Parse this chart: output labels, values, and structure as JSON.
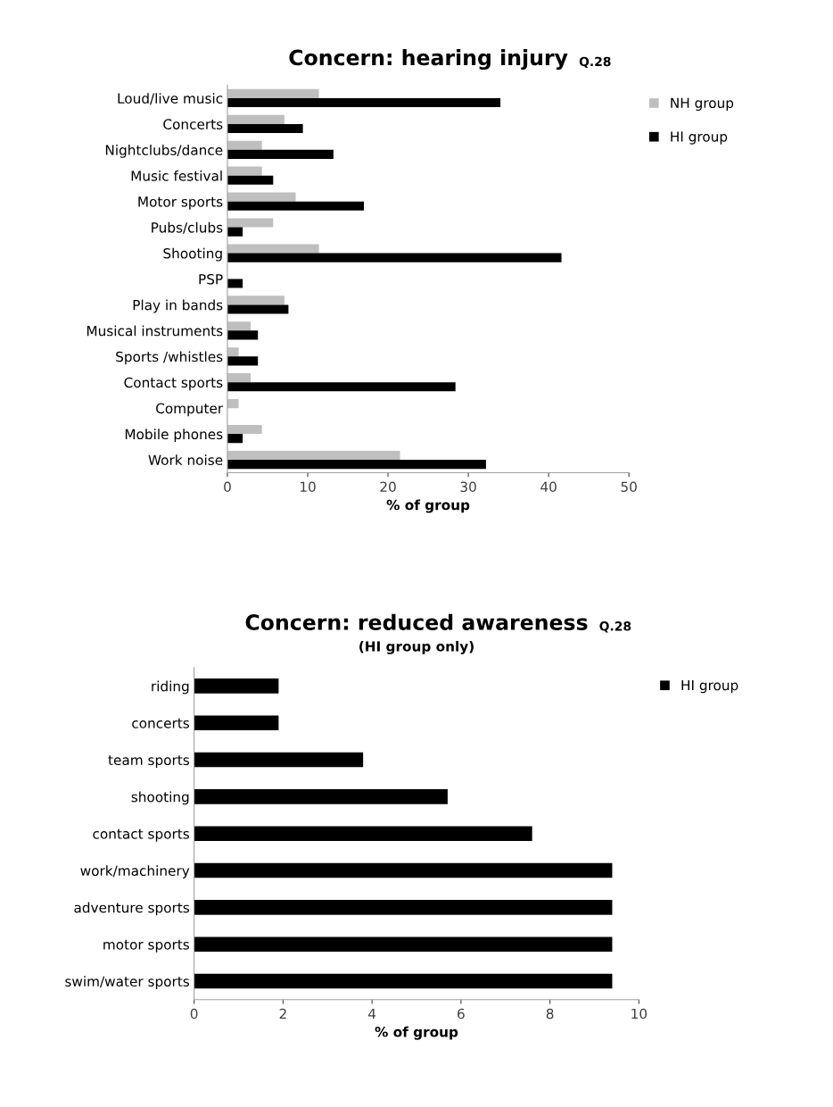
{
  "chart_data": [
    {
      "type": "bar",
      "orientation": "horizontal",
      "title": "Concern: hearing injury",
      "annotations": [
        "Q.28"
      ],
      "xlabel": "% of group",
      "categories": [
        "Loud/live music",
        "Concerts",
        "Nightclubs/dance",
        "Music festival",
        "Motor sports",
        "Pubs/clubs",
        "Shooting",
        "PSP",
        "Play in bands",
        "Musical instruments",
        "Sports /whistles",
        "Contact sports",
        "Computer",
        "Mobile phones",
        "Work noise"
      ],
      "series": [
        {
          "name": "NH group",
          "color": "#bfbfbf",
          "values": [
            11.4,
            7.1,
            4.3,
            4.3,
            8.5,
            5.7,
            11.4,
            0,
            7.1,
            2.9,
            1.4,
            2.9,
            1.4,
            4.3,
            21.5
          ]
        },
        {
          "name": "HI group",
          "color": "#000000",
          "values": [
            34.0,
            9.4,
            13.2,
            5.7,
            17.0,
            1.9,
            41.6,
            1.9,
            7.6,
            3.8,
            3.8,
            28.4,
            0,
            1.9,
            32.2
          ]
        }
      ],
      "xlim": [
        0,
        50
      ],
      "xticks": [
        0,
        10,
        20,
        30,
        40,
        50
      ],
      "grid": false,
      "legend": "top right"
    },
    {
      "type": "bar",
      "orientation": "horizontal",
      "title": "Concern: reduced awareness",
      "subtitle": "(HI group only)",
      "annotations": [
        "Q.28"
      ],
      "xlabel": "% of group",
      "categories": [
        "riding",
        "concerts",
        "team sports",
        "shooting",
        "contact sports",
        "work/machinery",
        "adventure sports",
        "motor sports",
        "swim/water sports"
      ],
      "series": [
        {
          "name": "HI group",
          "color": "#000000",
          "values": [
            1.9,
            1.9,
            3.8,
            5.7,
            7.6,
            9.4,
            9.4,
            9.4,
            9.4
          ]
        }
      ],
      "xlim": [
        0,
        10
      ],
      "xticks": [
        0,
        2,
        4,
        6,
        8,
        10
      ],
      "grid": false,
      "legend": "top right"
    }
  ]
}
